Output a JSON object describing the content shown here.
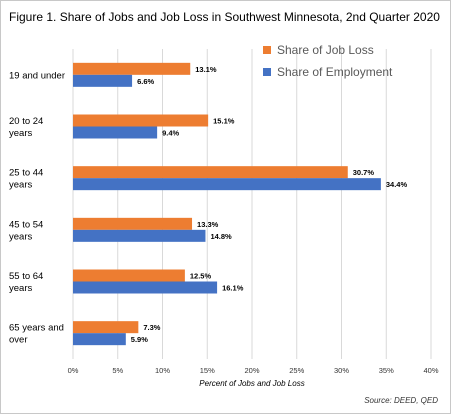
{
  "chart_data": {
    "type": "bar",
    "orientation": "horizontal",
    "title": "Figure 1. Share of Jobs and Job Loss in Southwest Minnesota, 2nd Quarter 2020",
    "xlabel": "Percent of Jobs and Job Loss",
    "ylabel": "",
    "source": "Source: DEED, QED",
    "categories": [
      "19 and under",
      "20 to 24 years",
      "25 to 44 years",
      "45 to 54 years",
      "55 to 64 years",
      "65 years and over"
    ],
    "category_lines": [
      [
        "19 and under"
      ],
      [
        "20 to 24",
        "years"
      ],
      [
        "25 to 44",
        "years"
      ],
      [
        "45 to 54",
        "years"
      ],
      [
        "55 to 64",
        "years"
      ],
      [
        "65 years and",
        "over"
      ]
    ],
    "series": [
      {
        "name": "Share of Job Loss",
        "color": "#ED7D31",
        "values": [
          13.1,
          15.1,
          30.7,
          13.3,
          12.5,
          7.3
        ]
      },
      {
        "name": "Share of Employment",
        "color": "#4472C4",
        "values": [
          6.6,
          9.4,
          34.4,
          14.8,
          16.1,
          5.9
        ]
      }
    ],
    "xlim": [
      0,
      40
    ],
    "xticks": [
      0,
      5,
      10,
      15,
      20,
      25,
      30,
      35,
      40
    ],
    "tick_suffix": "%",
    "grid": true,
    "legend_position": "top-right"
  }
}
